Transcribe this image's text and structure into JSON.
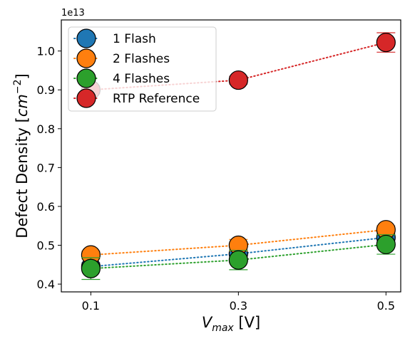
{
  "chart_data": {
    "type": "scatter",
    "title": "",
    "multiplier_label": "1e13",
    "xlabel": {
      "base": "V",
      "sub": "max",
      "rest": " [V]"
    },
    "ylabel": {
      "base": "Defect Density [",
      "italic": "cm",
      "sup": "−2",
      "rest": "]"
    },
    "x_ticks": [
      "0.1",
      "0.3",
      "0.5"
    ],
    "x_tick_values": [
      0.1,
      0.3,
      0.5
    ],
    "y_ticks": [
      "0.4",
      "0.5",
      "0.6",
      "0.7",
      "0.8",
      "0.9",
      "1.0"
    ],
    "y_tick_values": [
      0.4,
      0.5,
      0.6,
      0.7,
      0.8,
      0.9,
      1.0
    ],
    "xlim": [
      0.06,
      0.52
    ],
    "ylim": [
      0.38,
      1.08
    ],
    "grid": false,
    "legend_position": "top-left",
    "series": [
      {
        "name": "1 Flash",
        "color": "#1f77b4",
        "x": [
          0.1,
          0.3,
          0.5
        ],
        "y": [
          0.445,
          0.478,
          0.52
        ],
        "err": [
          0.01,
          0.01,
          0.01
        ]
      },
      {
        "name": "2 Flashes",
        "color": "#ff7f0e",
        "x": [
          0.1,
          0.3,
          0.5
        ],
        "y": [
          0.475,
          0.5,
          0.54
        ],
        "err": [
          0.01,
          0.015,
          0.01
        ]
      },
      {
        "name": "4 Flashes",
        "color": "#2ca02c",
        "x": [
          0.1,
          0.3,
          0.5
        ],
        "y": [
          0.44,
          0.462,
          0.502
        ],
        "err": [
          0.028,
          0.025,
          0.025
        ]
      },
      {
        "name": "RTP Reference",
        "color": "#d62728",
        "x": [
          0.1,
          0.3,
          0.5
        ],
        "y": [
          0.9,
          0.925,
          1.022
        ],
        "err": [
          0.01,
          0.01,
          0.025
        ]
      }
    ]
  }
}
